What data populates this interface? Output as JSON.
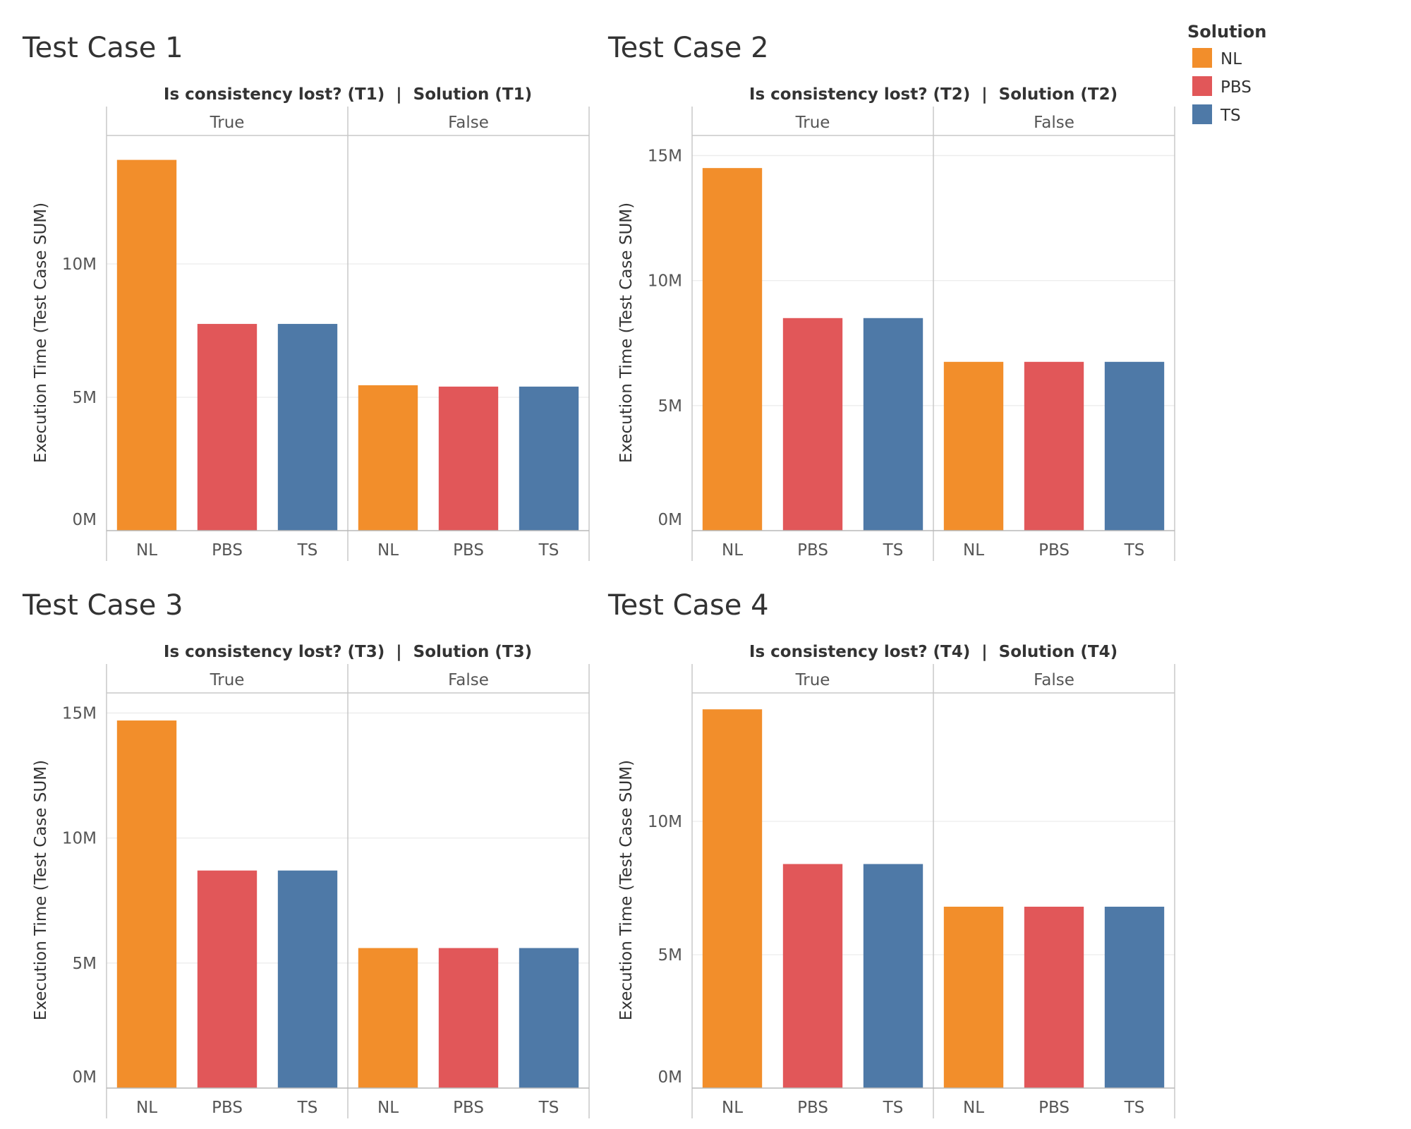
{
  "legend": {
    "title": "Solution",
    "items": [
      {
        "label": "NL",
        "color": "#f28e2b"
      },
      {
        "label": "PBS",
        "color": "#e15759"
      },
      {
        "label": "TS",
        "color": "#4e79a7"
      }
    ]
  },
  "chart_data": [
    {
      "type": "bar",
      "title": "Test Case 1",
      "header": "Is consistency lost? (T1)  |  Solution (T1)",
      "ylabel": "Execution Time (Test Case SUM)",
      "ylim": [
        0,
        15000000
      ],
      "yticks": [
        {
          "value": 0,
          "label": "0M"
        },
        {
          "value": 5000000,
          "label": "5M"
        },
        {
          "value": 10000000,
          "label": "10M"
        }
      ],
      "facets": [
        {
          "label": "True",
          "categories": [
            "NL",
            "PBS",
            "TS"
          ],
          "values": [
            13900000,
            7750000,
            7750000
          ]
        },
        {
          "label": "False",
          "categories": [
            "NL",
            "PBS",
            "TS"
          ],
          "values": [
            5450000,
            5400000,
            5400000
          ]
        }
      ]
    },
    {
      "type": "bar",
      "title": "Test Case 2",
      "header": "Is consistency lost? (T2)  |  Solution (T2)",
      "ylabel": "Execution Time (Test Case SUM)",
      "ylim": [
        0,
        16000000
      ],
      "yticks": [
        {
          "value": 0,
          "label": "0M"
        },
        {
          "value": 5000000,
          "label": "5M"
        },
        {
          "value": 10000000,
          "label": "10M"
        },
        {
          "value": 15000000,
          "label": "15M"
        }
      ],
      "facets": [
        {
          "label": "True",
          "categories": [
            "NL",
            "PBS",
            "TS"
          ],
          "values": [
            14500000,
            8500000,
            8500000
          ]
        },
        {
          "label": "False",
          "categories": [
            "NL",
            "PBS",
            "TS"
          ],
          "values": [
            6750000,
            6750000,
            6750000
          ]
        }
      ]
    },
    {
      "type": "bar",
      "title": "Test Case 3",
      "header": "Is consistency lost? (T3)  |  Solution (T3)",
      "ylabel": "Execution Time (Test Case SUM)",
      "ylim": [
        0,
        16000000
      ],
      "yticks": [
        {
          "value": 0,
          "label": "0M"
        },
        {
          "value": 5000000,
          "label": "5M"
        },
        {
          "value": 10000000,
          "label": "10M"
        },
        {
          "value": 15000000,
          "label": "15M"
        }
      ],
      "facets": [
        {
          "label": "True",
          "categories": [
            "NL",
            "PBS",
            "TS"
          ],
          "values": [
            14700000,
            8700000,
            8700000
          ]
        },
        {
          "label": "False",
          "categories": [
            "NL",
            "PBS",
            "TS"
          ],
          "values": [
            5600000,
            5600000,
            5600000
          ]
        }
      ]
    },
    {
      "type": "bar",
      "title": "Test Case 4",
      "header": "Is consistency lost? (T4)  |  Solution (T4)",
      "ylabel": "Execution Time (Test Case SUM)",
      "ylim": [
        0,
        15000000
      ],
      "yticks": [
        {
          "value": 0,
          "label": "0M"
        },
        {
          "value": 5000000,
          "label": "5M"
        },
        {
          "value": 10000000,
          "label": "10M"
        }
      ],
      "facets": [
        {
          "label": "True",
          "categories": [
            "NL",
            "PBS",
            "TS"
          ],
          "values": [
            14200000,
            8400000,
            8400000
          ]
        },
        {
          "label": "False",
          "categories": [
            "NL",
            "PBS",
            "TS"
          ],
          "values": [
            6800000,
            6800000,
            6800000
          ]
        }
      ]
    }
  ]
}
